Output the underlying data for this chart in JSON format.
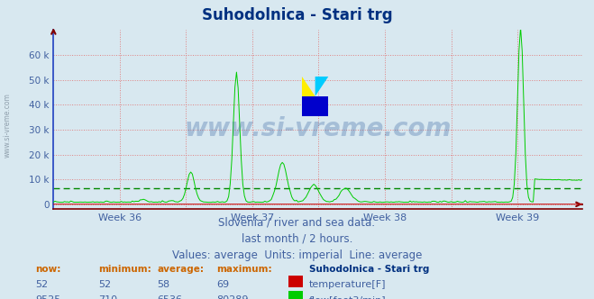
{
  "title": "Suhodolnica - Stari trg",
  "bg_color": "#d8e8f0",
  "title_color": "#003080",
  "title_fontsize": 12,
  "x_labels": [
    "Week 36",
    "Week 37",
    "Week 38",
    "Week 39"
  ],
  "x_label_color": "#4060a0",
  "y_tick_labels": [
    "0",
    "10 k",
    "20 k",
    "30 k",
    "40 k",
    "50 k",
    "60 k"
  ],
  "y_tick_vals": [
    0,
    10000,
    20000,
    30000,
    40000,
    50000,
    60000
  ],
  "y_color": "#4060a0",
  "grid_color": "#e08080",
  "flow_color": "#00cc00",
  "flow_avg_color": "#008800",
  "temp_color": "#cc0000",
  "temp_avg_color": "#880000",
  "yaxis_color": "#2040c0",
  "xaxis_color": "#800000",
  "watermark_text": "www.si-vreme.com",
  "watermark_color": "#3060a0",
  "watermark_alpha": 0.3,
  "footer_line1": "Slovenia / river and sea data.",
  "footer_line2": "last month / 2 hours.",
  "footer_line3": "Values: average  Units: imperial  Line: average",
  "footer_color": "#4060a0",
  "footer_fontsize": 8.5,
  "header_color": "#cc6600",
  "data_color": "#4060a0",
  "now_label": "now:",
  "min_label": "minimum:",
  "avg_label": "average:",
  "max_label": "maximum:",
  "station_label": "Suhodolnica - Stari trg",
  "temp_now": 52,
  "temp_min": 52,
  "temp_avg": 58,
  "temp_max": 69,
  "flow_now": 9525,
  "flow_min": 710,
  "flow_avg": 6536,
  "flow_max": 80289,
  "n_points": 336,
  "flow_avg_line": 6536,
  "ylim_max": 70000,
  "ylim_min": -2000
}
